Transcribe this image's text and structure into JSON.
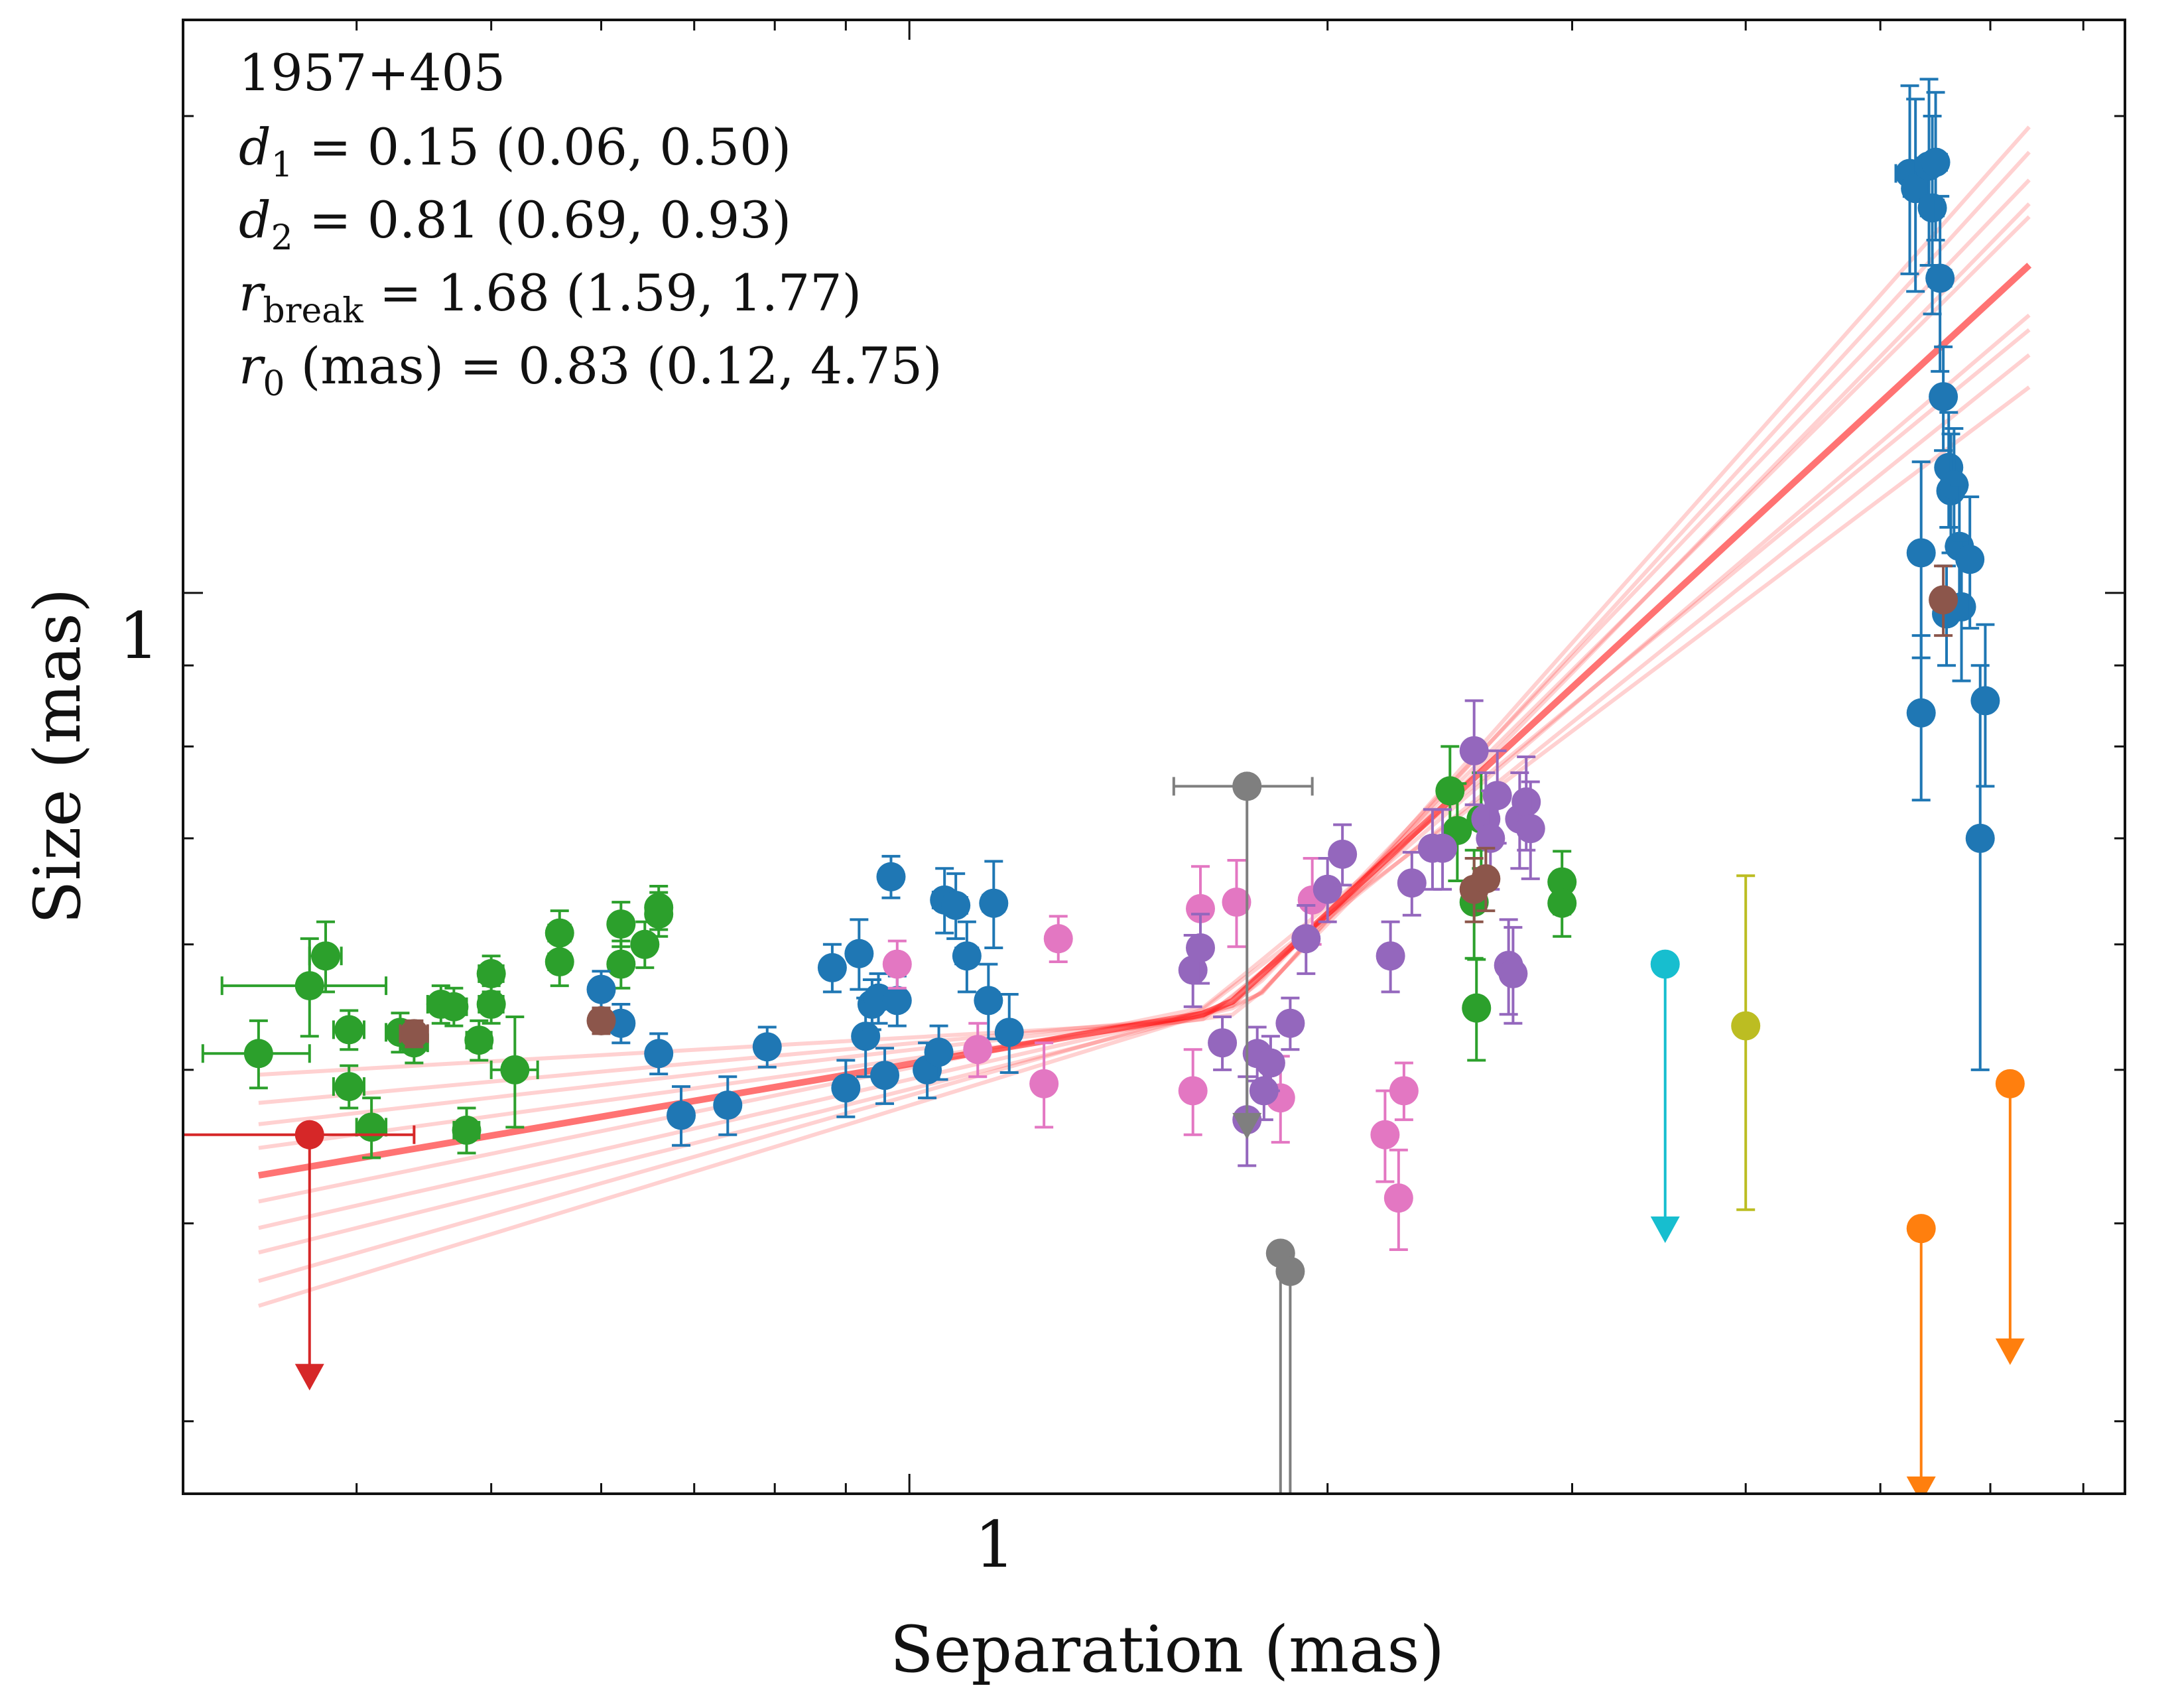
{
  "chart_data": {
    "type": "scatter",
    "title": "",
    "xlabel": "Separation (mas)",
    "ylabel": "Size (mas)",
    "xscale": "log",
    "yscale": "log",
    "xlim": [
      0.3,
      7.5
    ],
    "ylim": [
      0.27,
      2.3
    ],
    "xticks": [
      1
    ],
    "xtick_labels": [
      "1"
    ],
    "yticks": [
      1
    ],
    "ytick_labels": [
      "1"
    ],
    "grid": false,
    "annotations": {
      "source": "1957+405",
      "d1": {
        "sym": "d",
        "sub": "1",
        "text": " = 0.15 (0.06, 0.50)"
      },
      "d2": {
        "sym": "d",
        "sub": "2",
        "text": " = 0.81 (0.69, 0.93)"
      },
      "rbreak": {
        "sym": "r",
        "sub": "break",
        "text": " = 1.68 (1.59, 1.77)"
      },
      "r0": {
        "sym": "r",
        "sub": "0",
        "text": " (mas) = 0.83 (0.12, 4.75)"
      }
    },
    "fit": {
      "model": "broken power law",
      "r_break": 1.68,
      "size_at_break": 0.545,
      "d1": 0.15,
      "d2": 0.81,
      "x_range": [
        0.34,
        6.4
      ],
      "color": "#ff0000",
      "spread": [
        [
          0.0,
          0.0
        ],
        [
          0.05,
          0.02
        ],
        [
          -0.05,
          -0.02
        ],
        [
          0.1,
          0.035
        ],
        [
          -0.1,
          -0.035
        ],
        [
          0.03,
          -0.03
        ],
        [
          -0.03,
          0.03
        ],
        [
          0.07,
          0.05
        ],
        [
          -0.07,
          -0.05
        ],
        [
          0.12,
          0.06
        ]
      ]
    },
    "series": [
      {
        "name": "green",
        "color": "#2ca02c",
        "points": [
          [
            0.34,
            0.512,
            0.03,
            0.025
          ],
          [
            0.37,
            0.565,
            0.05,
            0.04
          ],
          [
            0.38,
            0.59,
            0.01,
            0.03
          ],
          [
            0.395,
            0.53,
            0.01,
            0.015
          ],
          [
            0.395,
            0.488,
            0.01,
            0.015
          ],
          [
            0.41,
            0.46,
            0.01,
            0.02
          ],
          [
            0.43,
            0.528,
            0.01,
            0.015
          ],
          [
            0.44,
            0.52,
            0.01,
            0.015
          ],
          [
            0.46,
            0.55,
            0.01,
            0.015
          ],
          [
            0.47,
            0.548,
            0.01,
            0.015
          ],
          [
            0.48,
            0.458,
            0.01,
            0.015
          ],
          [
            0.49,
            0.522,
            0.01,
            0.015
          ],
          [
            0.5,
            0.55,
            0.01,
            0.015
          ],
          [
            0.5,
            0.575,
            0.01,
            0.015
          ],
          [
            0.52,
            0.5,
            0.02,
            0.04
          ],
          [
            0.56,
            0.61,
            0.01,
            0.02
          ],
          [
            0.56,
            0.585,
            0.01,
            0.02
          ],
          [
            0.62,
            0.618,
            0.01,
            0.02
          ],
          [
            0.62,
            0.583,
            0.01,
            0.02
          ],
          [
            0.645,
            0.6,
            0.01,
            0.02
          ],
          [
            0.66,
            0.627,
            0.01,
            0.02
          ],
          [
            0.66,
            0.633,
            0.01,
            0.02
          ],
          [
            2.45,
            0.75,
            0.02,
            0.05
          ],
          [
            2.48,
            0.708,
            0.02,
            0.05
          ],
          [
            2.55,
            0.638,
            0.02,
            0.05
          ],
          [
            2.56,
            0.547,
            0.02,
            0.04
          ],
          [
            2.58,
            0.72,
            0.02,
            0.05
          ],
          [
            2.95,
            0.657,
            0.02,
            0.03
          ],
          [
            2.95,
            0.637,
            0.02,
            0.03
          ]
        ]
      },
      {
        "name": "blue",
        "color": "#1f77b4",
        "points": [
          [
            0.6,
            0.562,
            0.01,
            0.015
          ],
          [
            0.62,
            0.535,
            0.01,
            0.015
          ],
          [
            0.66,
            0.512,
            0.01,
            0.015
          ],
          [
            0.685,
            0.468,
            0.01,
            0.02
          ],
          [
            0.74,
            0.475,
            0.01,
            0.02
          ],
          [
            0.79,
            0.517,
            0.01,
            0.015
          ],
          [
            0.88,
            0.58,
            0.01,
            0.02
          ],
          [
            0.9,
            0.487,
            0.01,
            0.02
          ],
          [
            0.92,
            0.592,
            0.01,
            0.03
          ],
          [
            0.93,
            0.525,
            0.01,
            0.03
          ],
          [
            0.94,
            0.55,
            0.01,
            0.02
          ],
          [
            0.95,
            0.555,
            0.01,
            0.02
          ],
          [
            0.96,
            0.496,
            0.01,
            0.02
          ],
          [
            0.97,
            0.662,
            0.01,
            0.02
          ],
          [
            0.98,
            0.553,
            0.01,
            0.02
          ],
          [
            1.03,
            0.5,
            0.01,
            0.02
          ],
          [
            1.05,
            0.513,
            0.01,
            0.02
          ],
          [
            1.06,
            0.64,
            0.02,
            0.03
          ],
          [
            1.08,
            0.635,
            0.02,
            0.03
          ],
          [
            1.1,
            0.59,
            0.02,
            0.03
          ],
          [
            1.14,
            0.553,
            0.02,
            0.03
          ],
          [
            1.15,
            0.637,
            0.02,
            0.04
          ],
          [
            1.18,
            0.528,
            0.02,
            0.03
          ],
          [
            5.25,
            1.84,
            0.12,
            0.25
          ],
          [
            5.3,
            1.8,
            0.1,
            0.25
          ],
          [
            5.35,
            1.06,
            0.08,
            0.15
          ],
          [
            5.35,
            0.84,
            0.08,
            0.1
          ],
          [
            5.42,
            1.86,
            0.1,
            0.25
          ],
          [
            5.45,
            1.75,
            0.1,
            0.25
          ],
          [
            5.48,
            1.87,
            0.1,
            0.2
          ],
          [
            5.52,
            1.58,
            0.1,
            0.2
          ],
          [
            5.55,
            1.33,
            0.08,
            0.1
          ],
          [
            5.58,
            0.97,
            0.08,
            0.07
          ],
          [
            5.6,
            1.2,
            0.08,
            0.1
          ],
          [
            5.62,
            1.16,
            0.08,
            0.1
          ],
          [
            5.65,
            1.17,
            0.08,
            0.1
          ],
          [
            5.7,
            1.07,
            0.08,
            0.1
          ],
          [
            5.72,
            0.98,
            0.08,
            0.1
          ],
          [
            5.8,
            1.05,
            0.08,
            0.1
          ],
          [
            5.9,
            0.7,
            0.04,
            0.2
          ],
          [
            5.95,
            0.855,
            0.05,
            0.1
          ]
        ]
      },
      {
        "name": "pink",
        "color": "#e377c2",
        "points": [
          [
            0.98,
            0.583,
            0.01,
            0.02
          ],
          [
            1.12,
            0.515,
            0.01,
            0.02
          ],
          [
            1.25,
            0.49,
            0.01,
            0.03
          ],
          [
            1.28,
            0.605,
            0.01,
            0.02
          ],
          [
            1.6,
            0.485,
            0.01,
            0.03
          ],
          [
            1.62,
            0.632,
            0.01,
            0.04
          ],
          [
            1.72,
            0.638,
            0.01,
            0.04
          ],
          [
            1.85,
            0.48,
            0.01,
            0.03
          ],
          [
            1.95,
            0.64,
            0.01,
            0.04
          ],
          [
            2.2,
            0.455,
            0.01,
            0.03
          ],
          [
            2.25,
            0.415,
            0.01,
            0.03
          ],
          [
            2.27,
            0.485,
            0.01,
            0.02
          ]
        ]
      },
      {
        "name": "purple",
        "color": "#9467bd",
        "points": [
          [
            1.6,
            0.578,
            0.01,
            0.03
          ],
          [
            1.62,
            0.597,
            0.01,
            0.03
          ],
          [
            1.68,
            0.52,
            0.01,
            0.02
          ],
          [
            1.75,
            0.465,
            0.01,
            0.03
          ],
          [
            1.78,
            0.512,
            0.01,
            0.02
          ],
          [
            1.8,
            0.485,
            0.01,
            0.02
          ],
          [
            1.82,
            0.505,
            0.01,
            0.02
          ],
          [
            1.88,
            0.535,
            0.01,
            0.02
          ],
          [
            1.93,
            0.605,
            0.01,
            0.03
          ],
          [
            2.0,
            0.65,
            0.02,
            0.03
          ],
          [
            2.05,
            0.684,
            0.02,
            0.03
          ],
          [
            2.22,
            0.59,
            0.02,
            0.03
          ],
          [
            2.3,
            0.656,
            0.02,
            0.03
          ],
          [
            2.38,
            0.69,
            0.02,
            0.04
          ],
          [
            2.42,
            0.69,
            0.02,
            0.04
          ],
          [
            2.55,
            0.795,
            0.02,
            0.06
          ],
          [
            2.6,
            0.72,
            0.02,
            0.05
          ],
          [
            2.62,
            0.7,
            0.02,
            0.05
          ],
          [
            2.65,
            0.745,
            0.02,
            0.05
          ],
          [
            2.7,
            0.582,
            0.02,
            0.04
          ],
          [
            2.72,
            0.575,
            0.02,
            0.04
          ],
          [
            2.75,
            0.72,
            0.02,
            0.05
          ],
          [
            2.78,
            0.738,
            0.02,
            0.05
          ],
          [
            2.8,
            0.71,
            0.02,
            0.05
          ]
        ]
      },
      {
        "name": "brown",
        "color": "#8c564b",
        "points": [
          [
            0.44,
            0.527,
            0.01,
            0.01
          ],
          [
            0.6,
            0.537,
            0.01,
            0.01
          ],
          [
            2.55,
            0.65,
            0.02,
            0.03
          ],
          [
            2.6,
            0.66,
            0.02,
            0.03
          ],
          [
            5.55,
            0.99,
            0.05,
            0.05
          ]
        ]
      },
      {
        "name": "gray",
        "color": "#7f7f7f",
        "points": [
          [
            1.75,
            0.755,
            0.2,
            0.0
          ]
        ],
        "limits": [
          [
            1.75,
            0.755,
            0.458
          ],
          [
            1.85,
            0.383,
            0.2
          ],
          [
            1.88,
            0.373,
            0.2
          ]
        ]
      },
      {
        "name": "red-limit",
        "color": "#d62728",
        "points": [],
        "limits": [
          [
            0.37,
            0.455,
            0.318
          ]
        ],
        "xerr": [
          [
            0.37,
            0.455,
            0.07
          ]
        ]
      },
      {
        "name": "cyan-limit",
        "color": "#17becf",
        "points": [],
        "limits": [
          [
            3.5,
            0.583,
            0.394
          ]
        ]
      },
      {
        "name": "olive-limit",
        "color": "#bcbd22",
        "points": [],
        "points_err": [
          [
            4.0,
            0.533,
            0.0,
            0.1
          ]
        ],
        "limits": []
      },
      {
        "name": "orange-limit",
        "color": "#ff7f0e",
        "points": [],
        "limits": [
          [
            5.35,
            0.397,
            0.27
          ],
          [
            6.2,
            0.49,
            0.33
          ]
        ]
      }
    ]
  }
}
